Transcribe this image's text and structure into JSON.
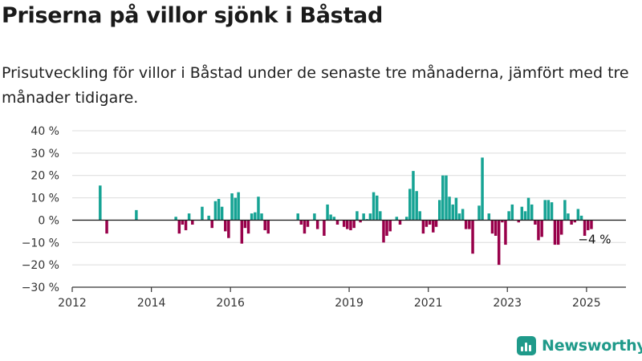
{
  "title": "Priserna på villor sjönk i Båstad",
  "subtitle": "Prisutveckling för villor i Båstad under de senaste tre månaderna, jämfört med tre månader tidigare.",
  "brand": {
    "name": "Newsworthy",
    "icon": "bar-chart-logo-icon",
    "color": "#1f9a8a"
  },
  "colors": {
    "positive": "#16a394",
    "negative": "#98004a",
    "grid": "#dcdcdc",
    "axis": "#333333"
  },
  "chart_data": {
    "type": "bar",
    "title": "",
    "xlabel": "",
    "ylabel": "",
    "ylim": [
      -30,
      40
    ],
    "y_ticks": [
      -30,
      -20,
      -10,
      0,
      10,
      20,
      30,
      40
    ],
    "y_tick_labels": [
      "−30 %",
      "−20 %",
      "−10 %",
      "0 %",
      "10 %",
      "20 %",
      "30 %",
      "40 %"
    ],
    "x_range": [
      "2012-01-01",
      "2025-12-31"
    ],
    "x_ticks": [
      "2012-01-01",
      "2014-01-01",
      "2016-01-01",
      "2019-01-01",
      "2021-01-01",
      "2023-01-01",
      "2025-01-01"
    ],
    "x_tick_labels": [
      "2012",
      "2014",
      "2016",
      "2019",
      "2021",
      "2023",
      "2025"
    ],
    "grid": true,
    "annotation": {
      "text": "−4 %",
      "date": "2025-02-15",
      "value": -4
    },
    "points": [
      [
        "2012-09",
        15.5
      ],
      [
        "2012-11",
        -6
      ],
      [
        "2013-08",
        4.5
      ],
      [
        "2014-08",
        1.5
      ],
      [
        "2014-09",
        -6
      ],
      [
        "2014-10",
        -2
      ],
      [
        "2014-11",
        -4.5
      ],
      [
        "2014-12",
        3
      ],
      [
        "2015-01",
        -2
      ],
      [
        "2015-04",
        6
      ],
      [
        "2015-06",
        2
      ],
      [
        "2015-07",
        -3.5
      ],
      [
        "2015-08",
        8.5
      ],
      [
        "2015-09",
        9.5
      ],
      [
        "2015-10",
        6
      ],
      [
        "2015-11",
        -5
      ],
      [
        "2015-12",
        -8
      ],
      [
        "2016-01",
        12
      ],
      [
        "2016-02",
        10
      ],
      [
        "2016-03",
        12.5
      ],
      [
        "2016-04",
        -10.5
      ],
      [
        "2016-05",
        -3.5
      ],
      [
        "2016-06",
        -6
      ],
      [
        "2016-07",
        3
      ],
      [
        "2016-08",
        3.5
      ],
      [
        "2016-09",
        10.5
      ],
      [
        "2016-10",
        3
      ],
      [
        "2016-11",
        -4.5
      ],
      [
        "2016-12",
        -6
      ],
      [
        "2017-09",
        3
      ],
      [
        "2017-10",
        -2
      ],
      [
        "2017-11",
        -6
      ],
      [
        "2017-12",
        -3
      ],
      [
        "2018-02",
        3
      ],
      [
        "2018-03",
        -4
      ],
      [
        "2018-05",
        -7
      ],
      [
        "2018-06",
        7
      ],
      [
        "2018-07",
        2.5
      ],
      [
        "2018-08",
        1.5
      ],
      [
        "2018-09",
        -2
      ],
      [
        "2018-11",
        -3
      ],
      [
        "2018-12",
        -4
      ],
      [
        "2019-01",
        -4.5
      ],
      [
        "2019-02",
        -3.5
      ],
      [
        "2019-03",
        4
      ],
      [
        "2019-04",
        -1
      ],
      [
        "2019-05",
        3
      ],
      [
        "2019-06",
        0.5
      ],
      [
        "2019-07",
        3
      ],
      [
        "2019-08",
        12.5
      ],
      [
        "2019-09",
        11
      ],
      [
        "2019-10",
        4
      ],
      [
        "2019-11",
        -10
      ],
      [
        "2019-12",
        -7
      ],
      [
        "2020-01",
        -5
      ],
      [
        "2020-03",
        1.5
      ],
      [
        "2020-04",
        -2
      ],
      [
        "2020-06",
        1.5
      ],
      [
        "2020-07",
        14
      ],
      [
        "2020-08",
        22
      ],
      [
        "2020-09",
        13
      ],
      [
        "2020-10",
        4
      ],
      [
        "2020-11",
        -6
      ],
      [
        "2020-12",
        -3
      ],
      [
        "2021-01",
        -2
      ],
      [
        "2021-02",
        -5.5
      ],
      [
        "2021-03",
        -3
      ],
      [
        "2021-04",
        9
      ],
      [
        "2021-05",
        20
      ],
      [
        "2021-06",
        20
      ],
      [
        "2021-07",
        10.5
      ],
      [
        "2021-08",
        7
      ],
      [
        "2021-09",
        10
      ],
      [
        "2021-10",
        3
      ],
      [
        "2021-11",
        5
      ],
      [
        "2021-12",
        -4
      ],
      [
        "2022-01",
        -4
      ],
      [
        "2022-02",
        -15
      ],
      [
        "2022-04",
        6.5
      ],
      [
        "2022-05",
        28
      ],
      [
        "2022-07",
        3
      ],
      [
        "2022-08",
        -6
      ],
      [
        "2022-09",
        -7
      ],
      [
        "2022-10",
        -20
      ],
      [
        "2022-11",
        -1
      ],
      [
        "2022-12",
        -11
      ],
      [
        "2023-01",
        4
      ],
      [
        "2023-02",
        7
      ],
      [
        "2023-04",
        -1
      ],
      [
        "2023-05",
        6
      ],
      [
        "2023-06",
        4
      ],
      [
        "2023-07",
        10
      ],
      [
        "2023-08",
        7
      ],
      [
        "2023-09",
        -2
      ],
      [
        "2023-10",
        -9
      ],
      [
        "2023-11",
        -7.5
      ],
      [
        "2023-12",
        9
      ],
      [
        "2024-01",
        9
      ],
      [
        "2024-02",
        8
      ],
      [
        "2024-03",
        -11
      ],
      [
        "2024-04",
        -11
      ],
      [
        "2024-05",
        -6.5
      ],
      [
        "2024-06",
        9
      ],
      [
        "2024-07",
        3
      ],
      [
        "2024-08",
        -2
      ],
      [
        "2024-09",
        -1
      ],
      [
        "2024-10",
        5
      ],
      [
        "2024-11",
        2
      ],
      [
        "2024-12",
        -7
      ],
      [
        "2025-01",
        -4.5
      ],
      [
        "2025-02",
        -4
      ]
    ]
  }
}
